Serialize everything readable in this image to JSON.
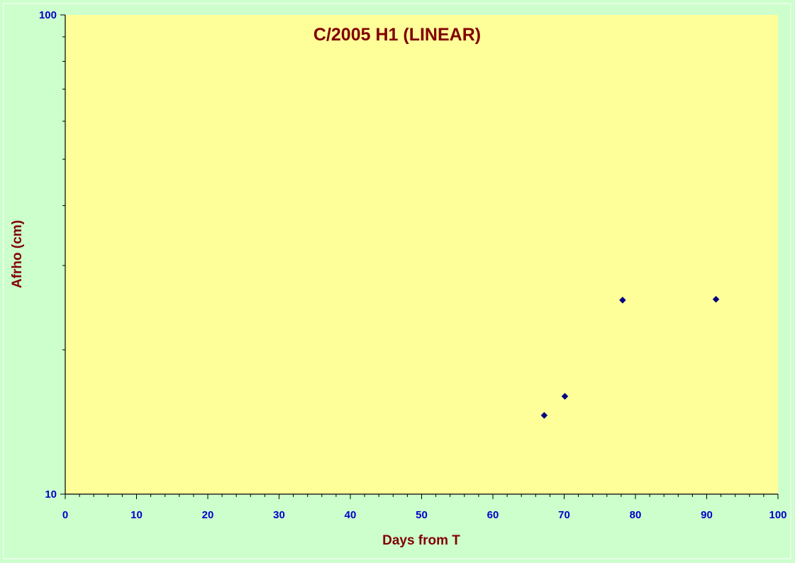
{
  "chart_data": {
    "type": "scatter",
    "title": "C/2005 H1 (LINEAR)",
    "xlabel": "Days from T",
    "ylabel": "Afrho (cm)",
    "xlim": [
      0,
      100
    ],
    "ylim": [
      10,
      100
    ],
    "y_scale": "log",
    "x_ticks": [
      0,
      10,
      20,
      30,
      40,
      50,
      60,
      70,
      80,
      90,
      100
    ],
    "y_tick_labels": [
      "10",
      "100"
    ],
    "grid": false,
    "legend": "none",
    "series": [
      {
        "x": [
          67.2,
          70.1,
          78.2,
          91.3
        ],
        "y": [
          14.6,
          16.0,
          25.4,
          25.5
        ]
      }
    ],
    "colors": {
      "outer_background": "#ccffcc",
      "plot_background": "#ffff99",
      "marker": "#000080",
      "tick_label": "#0000cc",
      "title_text": "#800000"
    }
  }
}
